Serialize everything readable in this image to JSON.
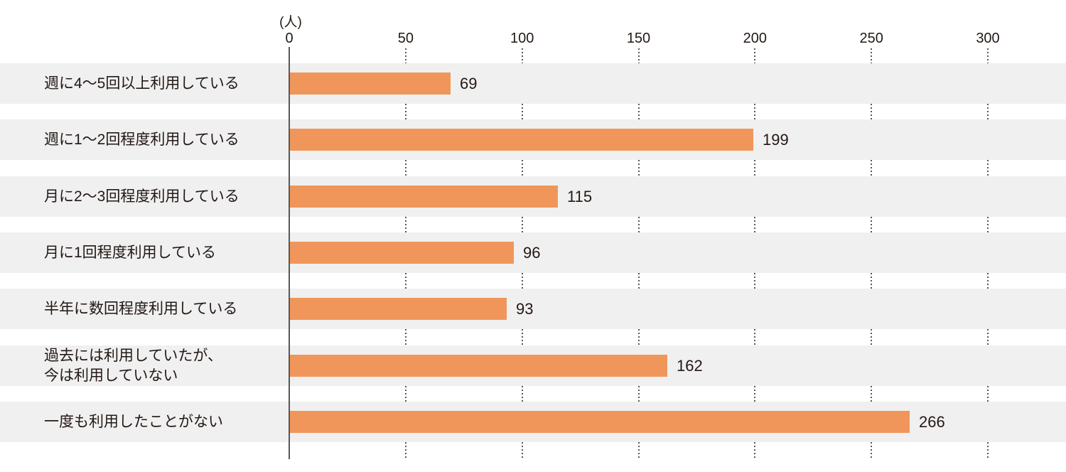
{
  "chart_data": {
    "type": "bar",
    "orientation": "horizontal",
    "title": "",
    "unit_label": "(人)",
    "xlabel": "",
    "ylabel": "",
    "xlim": [
      0,
      300
    ],
    "xticks": [
      0,
      50,
      100,
      150,
      200,
      250,
      300
    ],
    "grid": "dotted-vertical-in-row-gaps",
    "legend": "none",
    "categories": [
      "週に4〜5回以上利用している",
      "週に1〜2回程度利用している",
      "月に2〜3回程度利用している",
      "月に1回程度利用している",
      "半年に数回程度利用している",
      "過去には利用していたが、\n今は利用していない",
      "一度も利用したことがない"
    ],
    "values": [
      69,
      199,
      115,
      96,
      93,
      162,
      266
    ],
    "colors": {
      "bar": "#F0965A",
      "row_band": "#F0F0F0",
      "text": "#231815",
      "axis": "#595757",
      "grid_dots": "#595757",
      "background": "#FFFFFF"
    }
  }
}
